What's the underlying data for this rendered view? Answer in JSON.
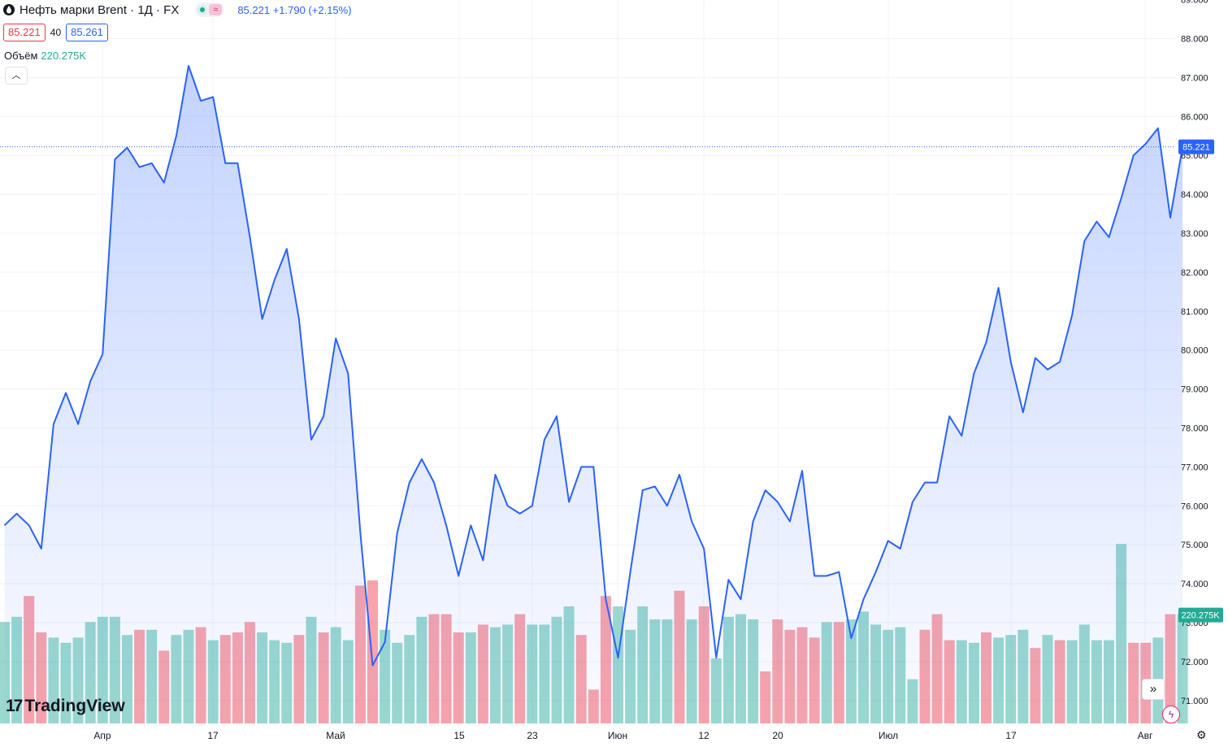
{
  "header": {
    "title": "Нефть марки Brent · 1Д · FX",
    "ohlc_text": "85.221  +1.790 (+2.15%)",
    "bid": "85.221",
    "spread": "40",
    "ask": "85.261",
    "volume_label": "Объём",
    "volume_value": "220.275K",
    "collapse_icon": "chevron-up",
    "status_dot_color": "#22ab94"
  },
  "branding": {
    "logo_text": "TradingView",
    "logo_mark": "17"
  },
  "colors": {
    "line": "#2962ff",
    "area_top": "#2962ff",
    "vol_up": "#22ab94",
    "vol_down": "#f23645",
    "grid": "#f0f3fa",
    "price_label_bg": "#2962ff",
    "vol_label_bg": "#22ab94"
  },
  "chart_data": {
    "type": "area",
    "ylim": [
      70.5,
      89.0
    ],
    "y_ticks": [
      "71.000",
      "72.000",
      "73.000",
      "74.000",
      "75.000",
      "76.000",
      "77.000",
      "78.000",
      "79.000",
      "80.000",
      "81.000",
      "82.000",
      "83.000",
      "84.000",
      "85.000",
      "86.000",
      "87.000",
      "88.000",
      "89.000"
    ],
    "x_labels": [
      "Апр",
      "17",
      "Май",
      "15",
      "23",
      "Июн",
      "12",
      "20",
      "Июл",
      "17",
      "Авг"
    ],
    "last_price_label": "85.221",
    "volume_label": "220.275K",
    "series": [
      {
        "values": [
          75.5,
          75.8,
          75.5,
          74.9,
          78.1,
          78.9,
          78.1,
          79.2,
          79.9,
          84.9,
          85.2,
          84.7,
          84.8,
          84.3,
          85.5,
          87.3,
          86.4,
          86.5,
          84.8,
          84.8,
          82.9,
          80.8,
          81.8,
          82.6,
          80.8,
          77.7,
          78.3,
          80.3,
          79.4,
          75.3,
          71.9,
          72.5,
          75.3,
          76.6,
          77.2,
          76.6,
          75.5,
          74.2,
          75.5,
          74.6,
          76.8,
          76.0,
          75.8,
          76.0,
          77.7,
          78.3,
          76.1,
          77.0,
          77.0,
          73.6,
          72.1,
          74.3,
          76.4,
          76.5,
          76.0,
          76.8,
          75.6,
          74.9,
          72.1,
          74.1,
          73.6,
          75.6,
          76.4,
          76.1,
          75.6,
          76.9,
          74.2,
          74.2,
          74.3,
          72.6,
          73.6,
          74.3,
          75.1,
          74.9,
          76.1,
          76.6,
          76.6,
          78.3,
          77.8,
          79.4,
          80.2,
          81.6,
          79.7,
          78.4,
          79.8,
          79.5,
          79.7,
          80.9,
          82.8,
          83.3,
          82.9,
          83.9,
          85.0,
          85.3,
          85.7,
          83.4,
          85.221
        ]
      },
      {
        "volume_up": [
          true,
          true,
          false,
          false,
          true,
          true,
          true,
          true,
          true,
          true,
          true,
          false,
          true,
          false,
          true,
          true,
          false,
          true,
          false,
          false,
          false,
          true,
          true,
          true,
          false,
          true,
          false,
          true,
          true,
          false,
          false,
          true,
          true,
          true,
          true,
          false,
          false,
          false,
          true,
          false,
          true,
          true,
          false,
          true,
          true,
          true,
          true,
          false,
          false,
          false,
          true,
          true,
          true,
          true,
          true,
          false,
          true,
          false,
          true,
          true,
          true,
          true,
          false,
          false,
          false,
          false,
          false,
          true,
          false,
          true,
          true,
          true,
          true,
          true,
          true,
          false,
          false,
          false,
          true,
          true,
          false,
          true,
          true,
          true,
          false,
          true,
          false,
          true,
          true,
          true,
          true,
          true,
          false,
          false,
          true,
          false,
          true
        ],
        "volume_level": [
          0.39,
          0.41,
          0.49,
          0.35,
          0.33,
          0.31,
          0.33,
          0.39,
          0.41,
          0.41,
          0.34,
          0.36,
          0.36,
          0.28,
          0.34,
          0.36,
          0.37,
          0.32,
          0.34,
          0.35,
          0.39,
          0.35,
          0.32,
          0.31,
          0.34,
          0.41,
          0.35,
          0.37,
          0.32,
          0.53,
          0.55,
          0.36,
          0.31,
          0.34,
          0.41,
          0.42,
          0.42,
          0.35,
          0.35,
          0.38,
          0.37,
          0.38,
          0.42,
          0.38,
          0.38,
          0.41,
          0.45,
          0.34,
          0.13,
          0.49,
          0.45,
          0.36,
          0.45,
          0.4,
          0.4,
          0.51,
          0.4,
          0.45,
          0.25,
          0.41,
          0.42,
          0.4,
          0.2,
          0.4,
          0.36,
          0.37,
          0.33,
          0.39,
          0.39,
          0.4,
          0.43,
          0.38,
          0.36,
          0.37,
          0.17,
          0.36,
          0.42,
          0.32,
          0.32,
          0.31,
          0.35,
          0.33,
          0.34,
          0.36,
          0.29,
          0.34,
          0.32,
          0.32,
          0.38,
          0.32,
          0.32,
          0.69,
          0.31,
          0.31,
          0.33,
          0.42,
          0.42
        ]
      }
    ]
  }
}
